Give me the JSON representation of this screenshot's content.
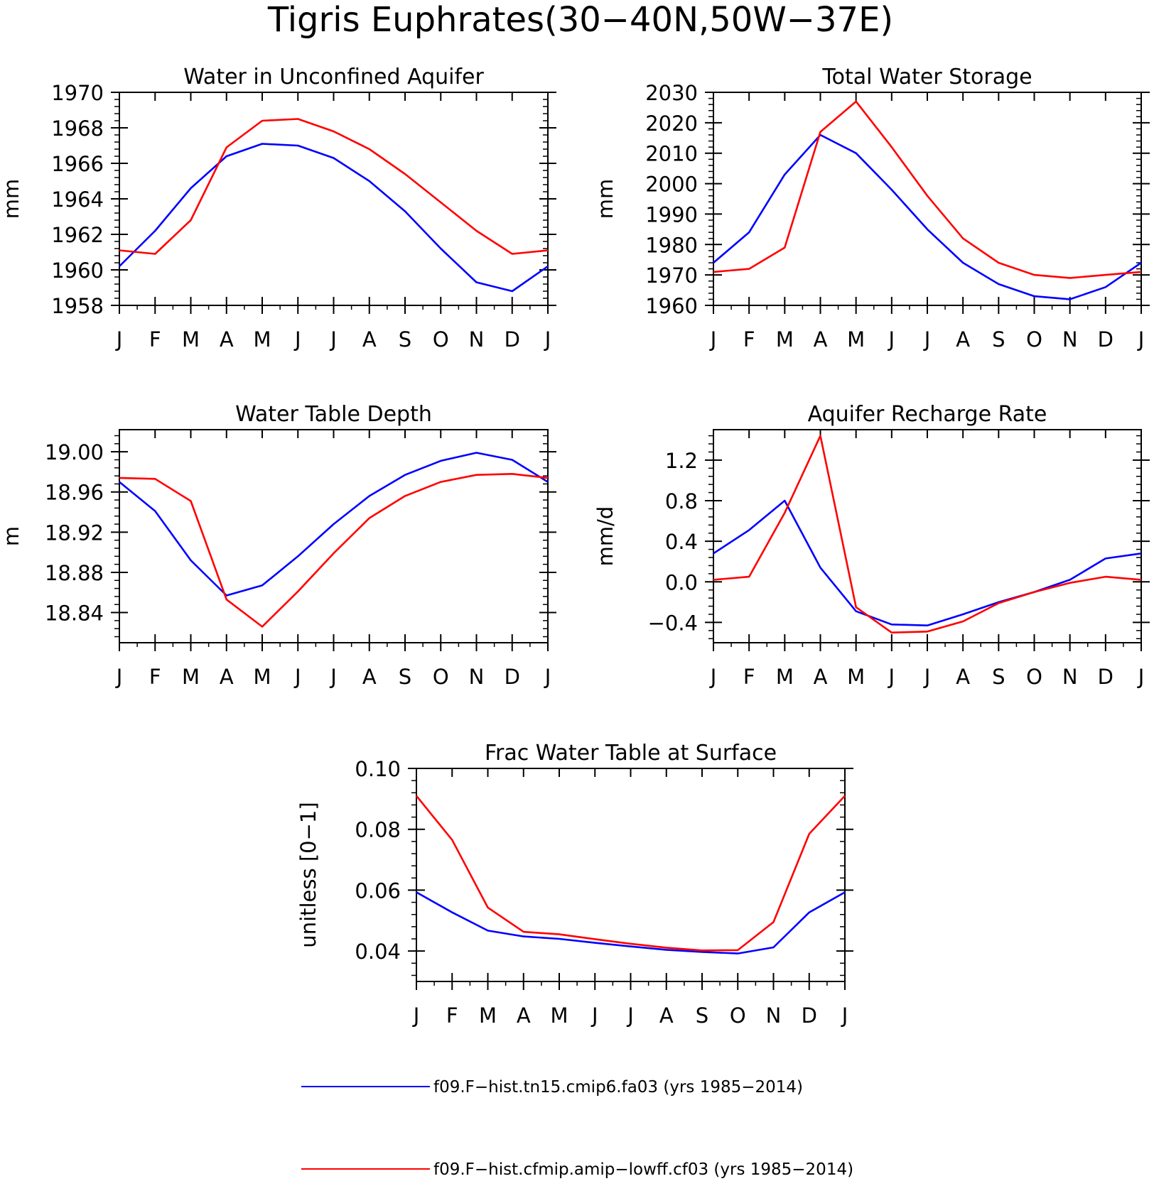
{
  "title": "Tigris Euphrates(30−40N,50W−37E)",
  "colors": {
    "series_a": "#0000ff",
    "series_b": "#ff0000",
    "axis": "#000000"
  },
  "legend": [
    {
      "label": "f09.F−hist.tn15.cmip6.fa03 (yrs 1985−2014)",
      "color": "#0000ff"
    },
    {
      "label": "f09.F−hist.cfmip.amip−lowff.cf03 (yrs 1985−2014)",
      "color": "#ff0000"
    }
  ],
  "chart_data": [
    {
      "type": "line",
      "title": "Water in Unconfined Aquifer",
      "ylabel": "mm",
      "x_ticks": [
        "J",
        "F",
        "M",
        "A",
        "M",
        "J",
        "J",
        "A",
        "S",
        "O",
        "N",
        "D",
        "J"
      ],
      "ylim": [
        1958,
        1970
      ],
      "y_ticks": [
        1958,
        1960,
        1962,
        1964,
        1966,
        1968,
        1970
      ],
      "y_tick_labels": [
        "1958",
        "1960",
        "1962",
        "1964",
        "1966",
        "1968",
        "1970"
      ],
      "series": [
        {
          "values": [
            1960.2,
            1962.2,
            1964.6,
            1966.4,
            1967.1,
            1967.0,
            1966.3,
            1965.0,
            1963.3,
            1961.2,
            1959.3,
            1958.8,
            1960.2
          ]
        },
        {
          "values": [
            1961.1,
            1960.9,
            1962.8,
            1966.9,
            1968.4,
            1968.5,
            1967.8,
            1966.8,
            1965.4,
            1963.8,
            1962.2,
            1960.9,
            1961.1
          ]
        }
      ]
    },
    {
      "type": "line",
      "title": "Total Water Storage",
      "ylabel": "mm",
      "x_ticks": [
        "J",
        "F",
        "M",
        "A",
        "M",
        "J",
        "J",
        "A",
        "S",
        "O",
        "N",
        "D",
        "J"
      ],
      "ylim": [
        1960,
        2030
      ],
      "y_ticks": [
        1960,
        1970,
        1980,
        1990,
        2000,
        2010,
        2020,
        2030
      ],
      "y_tick_labels": [
        "1960",
        "1970",
        "1980",
        "1990",
        "2000",
        "2010",
        "2020",
        "2030"
      ],
      "series": [
        {
          "values": [
            1974,
            1984,
            2003,
            2016,
            2010,
            1998,
            1985,
            1974,
            1967,
            1963,
            1962,
            1966,
            1974
          ]
        },
        {
          "values": [
            1971,
            1972,
            1979,
            2017,
            2027,
            2012,
            1996,
            1982,
            1974,
            1970,
            1969,
            1970,
            1971
          ]
        }
      ]
    },
    {
      "type": "line",
      "title": "Water Table Depth",
      "ylabel": "m",
      "x_ticks": [
        "J",
        "F",
        "M",
        "A",
        "M",
        "J",
        "J",
        "A",
        "S",
        "O",
        "N",
        "D",
        "J"
      ],
      "ylim": [
        18.81,
        19.022
      ],
      "y_ticks": [
        18.84,
        18.88,
        18.92,
        18.96,
        19.0
      ],
      "y_tick_labels": [
        "18.84",
        "18.88",
        "18.92",
        "18.96",
        "19.00"
      ],
      "series": [
        {
          "values": [
            18.97,
            18.941,
            18.892,
            18.857,
            18.867,
            18.896,
            18.928,
            18.956,
            18.977,
            18.991,
            18.999,
            18.992,
            18.97
          ]
        },
        {
          "values": [
            18.974,
            18.973,
            18.951,
            18.853,
            18.826,
            18.861,
            18.899,
            18.934,
            18.956,
            18.97,
            18.977,
            18.978,
            18.974
          ]
        }
      ]
    },
    {
      "type": "line",
      "title": "Aquifer Recharge Rate",
      "ylabel": "mm/d",
      "x_ticks": [
        "J",
        "F",
        "M",
        "A",
        "M",
        "J",
        "J",
        "A",
        "S",
        "O",
        "N",
        "D",
        "J"
      ],
      "ylim": [
        -0.6,
        1.5
      ],
      "y_ticks": [
        -0.4,
        0.0,
        0.4,
        0.8,
        1.2
      ],
      "y_tick_labels": [
        "−0.4",
        "0.0",
        "0.4",
        "0.8",
        "1.2"
      ],
      "series": [
        {
          "values": [
            0.28,
            0.51,
            0.8,
            0.14,
            -0.29,
            -0.42,
            -0.43,
            -0.32,
            -0.2,
            -0.1,
            0.02,
            0.23,
            0.28
          ]
        },
        {
          "values": [
            0.02,
            0.05,
            0.68,
            1.44,
            -0.25,
            -0.5,
            -0.49,
            -0.39,
            -0.21,
            -0.1,
            -0.01,
            0.05,
            0.02
          ]
        }
      ]
    },
    {
      "type": "line",
      "title": "Frac Water Table at Surface",
      "ylabel": "unitless [0−1]",
      "x_ticks": [
        "J",
        "F",
        "M",
        "A",
        "M",
        "J",
        "J",
        "A",
        "S",
        "O",
        "N",
        "D",
        "J"
      ],
      "ylim": [
        0.03,
        0.1
      ],
      "y_ticks": [
        0.04,
        0.06,
        0.08,
        0.1
      ],
      "y_tick_labels": [
        "0.04",
        "0.06",
        "0.08",
        "0.10"
      ],
      "series": [
        {
          "values": [
            0.0593,
            0.0527,
            0.0467,
            0.0448,
            0.044,
            0.0427,
            0.0415,
            0.0404,
            0.0397,
            0.0392,
            0.0412,
            0.0527,
            0.0593
          ]
        },
        {
          "values": [
            0.091,
            0.0765,
            0.0543,
            0.0463,
            0.0455,
            0.0439,
            0.0424,
            0.0411,
            0.0402,
            0.0403,
            0.0495,
            0.0785,
            0.091
          ]
        }
      ]
    }
  ]
}
